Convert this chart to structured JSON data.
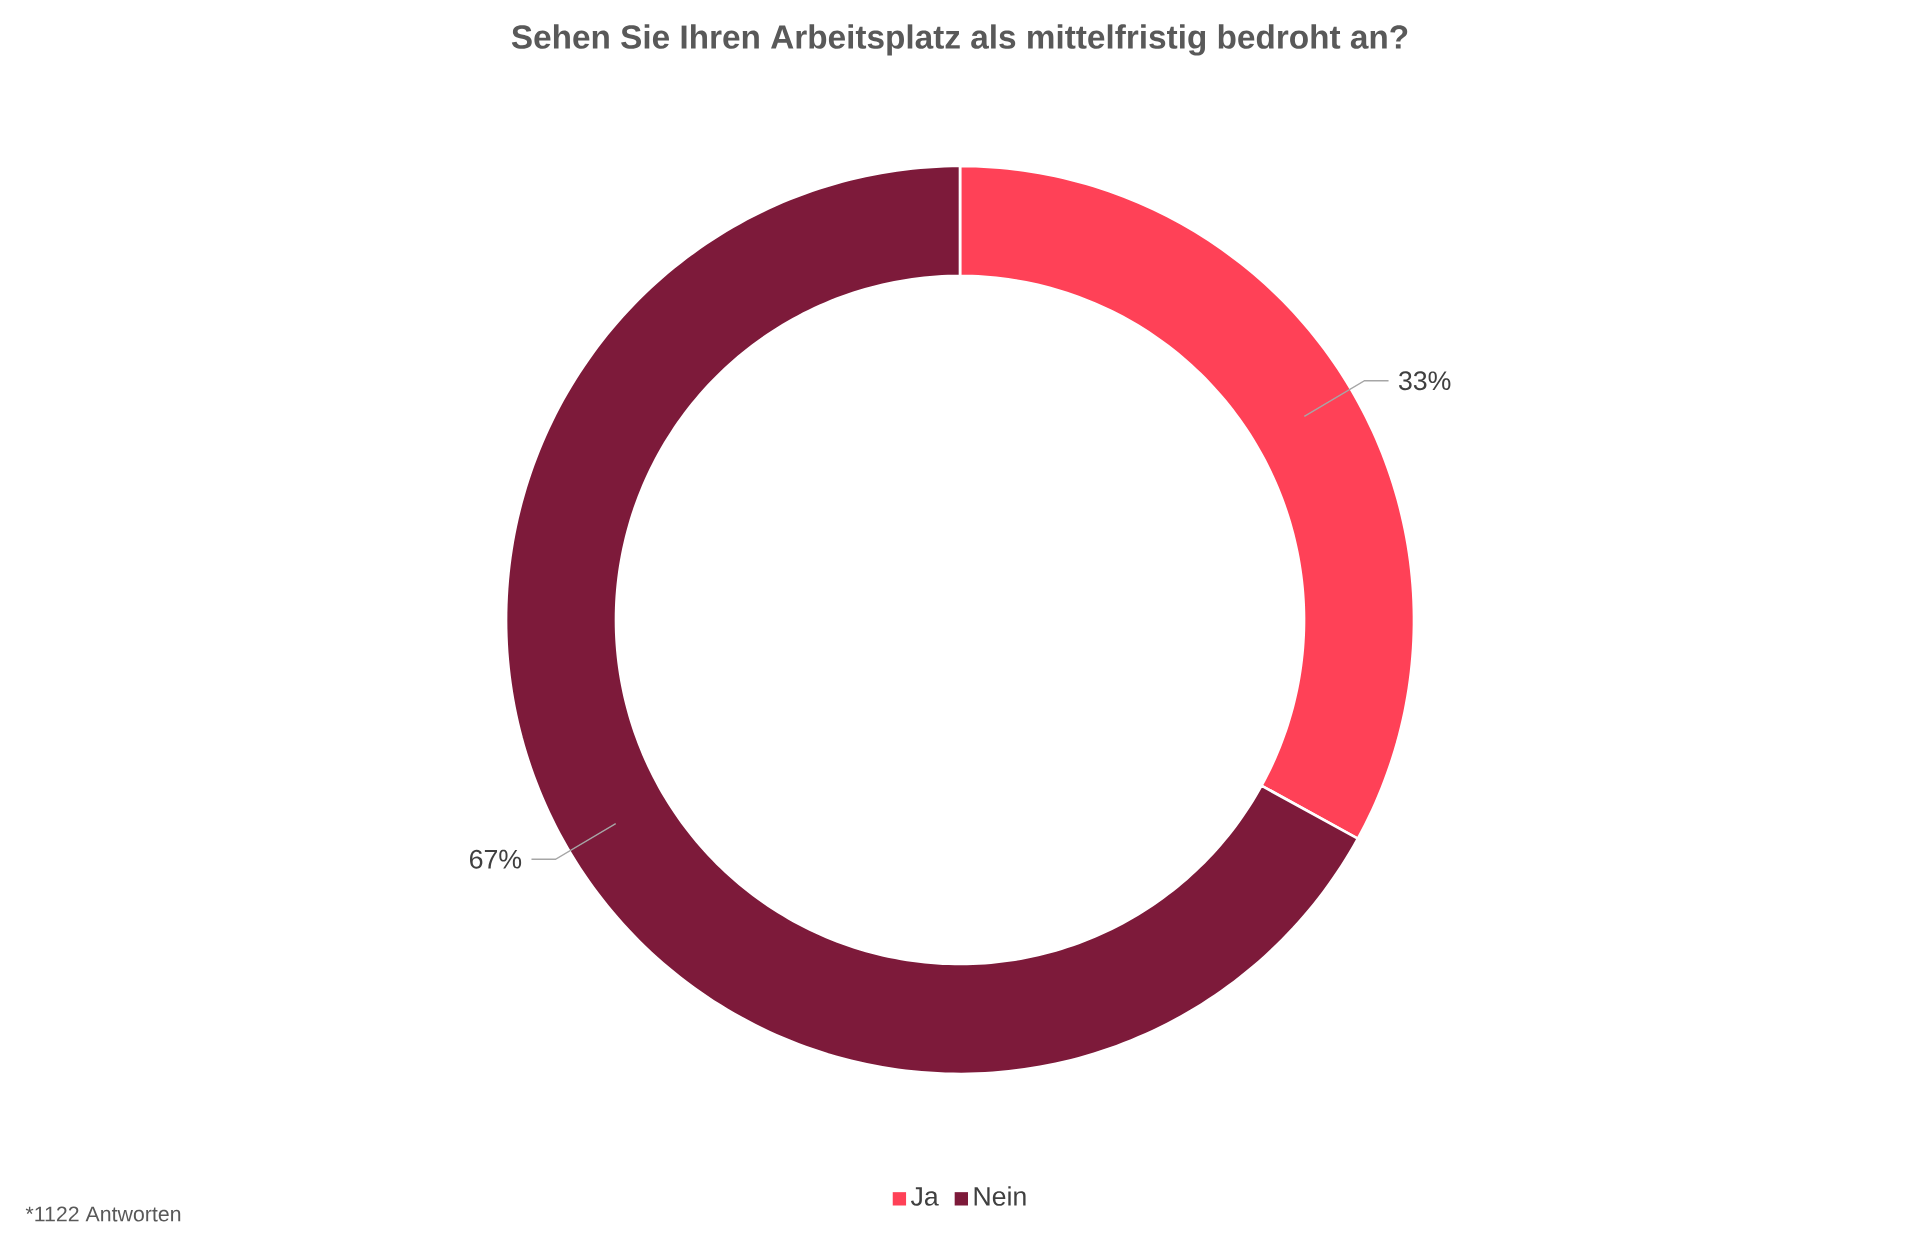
{
  "chart_data": {
    "type": "donut",
    "title": "Sehen Sie Ihren Arbeitsplatz als mittelfristig bedroht an?",
    "categories": [
      "Ja",
      "Nein"
    ],
    "values": [
      33,
      67
    ],
    "colors": [
      "#ff4157",
      "#7d1a3a"
    ],
    "value_labels": [
      "33%",
      "67%"
    ],
    "legend": "bottom",
    "annotations": [
      "*1122 Antworten"
    ]
  }
}
